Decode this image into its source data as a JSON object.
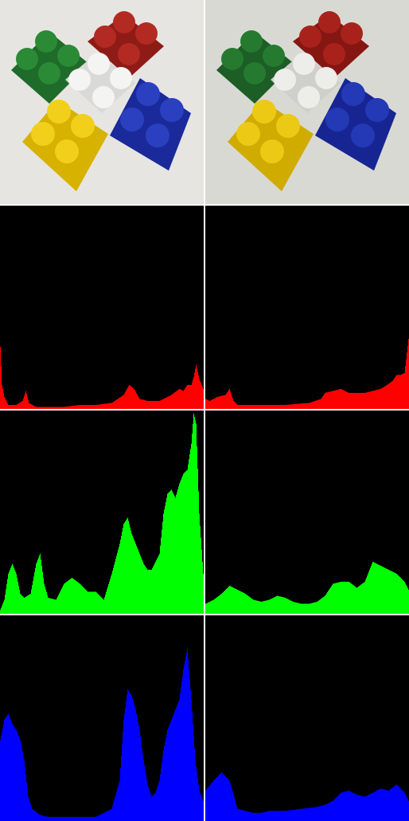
{
  "photos": [
    {
      "description_visible": false,
      "adjusted": false
    },
    {
      "description_visible": false,
      "adjusted": true
    }
  ],
  "colors": {
    "red": "#ff0000",
    "green": "#00ff00",
    "blue": "#0000ff",
    "background": "#000000",
    "divider": "#ffffff"
  },
  "chart_data": [
    {
      "type": "area",
      "channel": "red",
      "variant": "original",
      "xlim": [
        0,
        255
      ],
      "ylim": [
        0,
        1
      ],
      "x": [
        0,
        2,
        5,
        10,
        20,
        28,
        32,
        36,
        45,
        60,
        80,
        100,
        120,
        140,
        155,
        162,
        168,
        175,
        185,
        200,
        215,
        225,
        230,
        235,
        240,
        243,
        246,
        250,
        255
      ],
      "y": [
        0.31,
        0.12,
        0.06,
        0.02,
        0.02,
        0.04,
        0.09,
        0.03,
        0.01,
        0.01,
        0.01,
        0.02,
        0.02,
        0.03,
        0.07,
        0.12,
        0.1,
        0.05,
        0.04,
        0.04,
        0.07,
        0.1,
        0.09,
        0.12,
        0.12,
        0.16,
        0.22,
        0.15,
        0.1
      ]
    },
    {
      "type": "area",
      "channel": "red",
      "variant": "adjusted",
      "xlim": [
        0,
        255
      ],
      "ylim": [
        0,
        1
      ],
      "x": [
        0,
        5,
        15,
        25,
        30,
        35,
        40,
        50,
        70,
        100,
        130,
        145,
        150,
        160,
        170,
        180,
        190,
        200,
        210,
        220,
        228,
        235,
        240,
        245,
        250,
        255
      ],
      "y": [
        0.05,
        0.04,
        0.06,
        0.07,
        0.1,
        0.04,
        0.02,
        0.02,
        0.02,
        0.02,
        0.03,
        0.05,
        0.08,
        0.09,
        0.1,
        0.08,
        0.08,
        0.08,
        0.09,
        0.1,
        0.12,
        0.14,
        0.17,
        0.17,
        0.18,
        0.35
      ]
    },
    {
      "type": "area",
      "channel": "green",
      "variant": "original",
      "xlim": [
        0,
        255
      ],
      "ylim": [
        0,
        1
      ],
      "x": [
        0,
        5,
        10,
        15,
        20,
        25,
        30,
        38,
        45,
        50,
        55,
        60,
        70,
        80,
        90,
        100,
        110,
        120,
        130,
        140,
        150,
        155,
        160,
        165,
        170,
        175,
        180,
        185,
        190,
        200,
        205,
        210,
        215,
        220,
        225,
        230,
        235,
        240,
        243,
        246,
        250,
        255
      ],
      "y": [
        0.02,
        0.07,
        0.2,
        0.25,
        0.2,
        0.1,
        0.08,
        0.1,
        0.25,
        0.3,
        0.15,
        0.08,
        0.07,
        0.15,
        0.18,
        0.15,
        0.11,
        0.11,
        0.07,
        0.2,
        0.35,
        0.45,
        0.48,
        0.4,
        0.35,
        0.3,
        0.25,
        0.22,
        0.22,
        0.3,
        0.5,
        0.6,
        0.62,
        0.58,
        0.65,
        0.7,
        0.72,
        0.85,
        1.0,
        0.95,
        0.5,
        0.2
      ]
    },
    {
      "type": "area",
      "channel": "green",
      "variant": "adjusted",
      "xlim": [
        0,
        255
      ],
      "ylim": [
        0,
        1
      ],
      "x": [
        0,
        10,
        20,
        30,
        40,
        50,
        60,
        70,
        80,
        90,
        100,
        110,
        120,
        130,
        140,
        150,
        160,
        170,
        180,
        190,
        200,
        210,
        220,
        230,
        240,
        250,
        255
      ],
      "y": [
        0.05,
        0.07,
        0.1,
        0.14,
        0.12,
        0.1,
        0.07,
        0.06,
        0.07,
        0.09,
        0.08,
        0.06,
        0.05,
        0.05,
        0.06,
        0.09,
        0.15,
        0.16,
        0.16,
        0.13,
        0.16,
        0.26,
        0.24,
        0.22,
        0.2,
        0.16,
        0.12
      ]
    },
    {
      "type": "area",
      "channel": "blue",
      "variant": "original",
      "xlim": [
        0,
        255
      ],
      "ylim": [
        0,
        1
      ],
      "x": [
        0,
        5,
        10,
        15,
        20,
        25,
        30,
        35,
        40,
        50,
        60,
        80,
        100,
        120,
        140,
        150,
        155,
        160,
        165,
        170,
        175,
        180,
        185,
        190,
        195,
        200,
        205,
        210,
        215,
        220,
        225,
        230,
        235,
        240,
        245,
        250,
        255
      ],
      "y": [
        0.4,
        0.5,
        0.53,
        0.48,
        0.45,
        0.4,
        0.3,
        0.12,
        0.06,
        0.03,
        0.02,
        0.02,
        0.02,
        0.02,
        0.06,
        0.2,
        0.5,
        0.65,
        0.62,
        0.55,
        0.45,
        0.3,
        0.18,
        0.12,
        0.14,
        0.2,
        0.35,
        0.45,
        0.5,
        0.55,
        0.6,
        0.75,
        0.85,
        0.6,
        0.3,
        0.15,
        0.1
      ]
    },
    {
      "type": "area",
      "channel": "blue",
      "variant": "adjusted",
      "xlim": [
        0,
        255
      ],
      "ylim": [
        0,
        1
      ],
      "x": [
        0,
        10,
        20,
        30,
        40,
        50,
        60,
        70,
        80,
        100,
        120,
        140,
        150,
        160,
        170,
        180,
        190,
        200,
        210,
        220,
        230,
        240,
        250,
        255
      ],
      "y": [
        0.15,
        0.2,
        0.24,
        0.2,
        0.06,
        0.05,
        0.04,
        0.04,
        0.05,
        0.05,
        0.06,
        0.07,
        0.08,
        0.1,
        0.14,
        0.15,
        0.13,
        0.12,
        0.14,
        0.16,
        0.15,
        0.18,
        0.14,
        0.1
      ]
    }
  ]
}
